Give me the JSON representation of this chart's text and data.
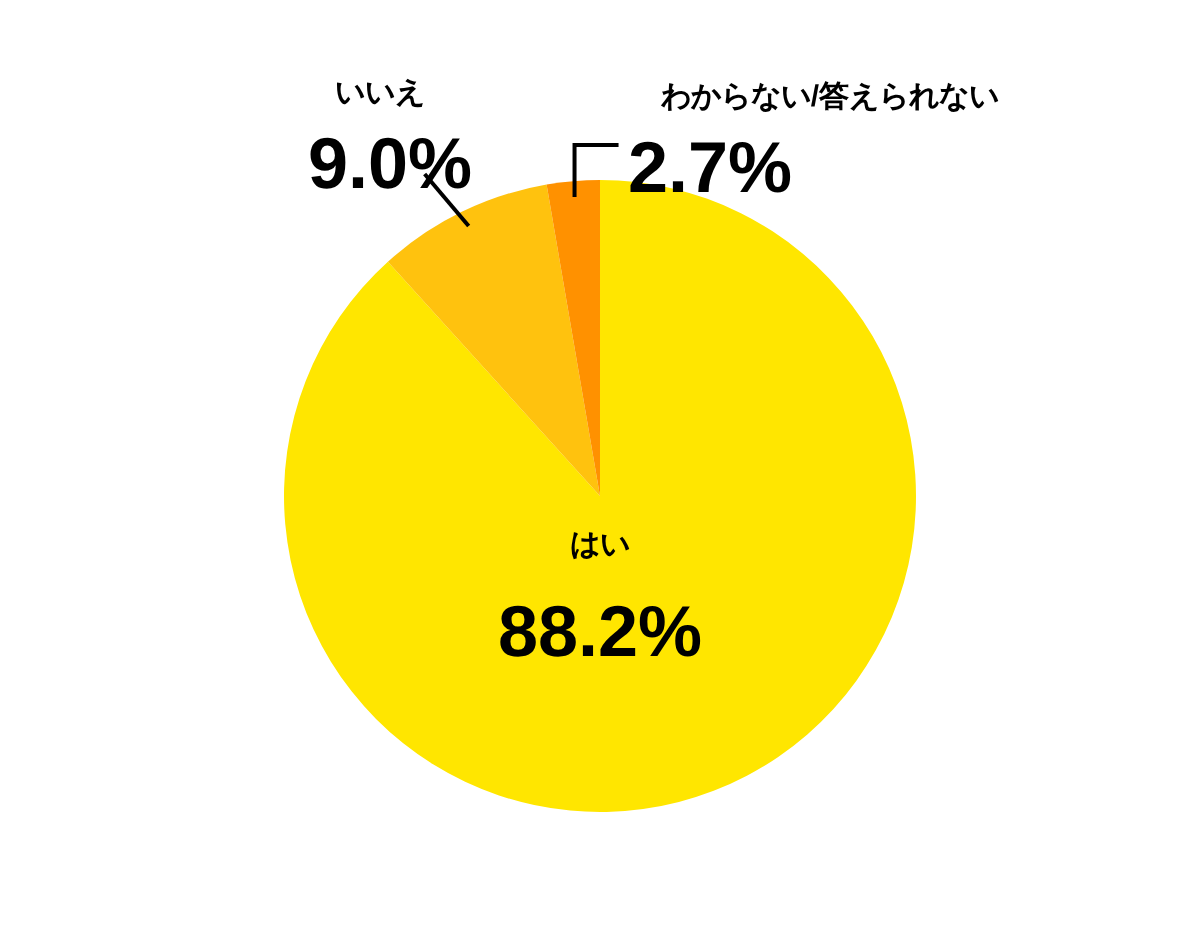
{
  "chart_data": {
    "type": "pie",
    "categories": [
      "はい",
      "いいえ",
      "わからない/答えられない"
    ],
    "values": [
      88.2,
      9.0,
      2.7
    ],
    "colors": [
      "#ffe600",
      "#ffc20e",
      "#ff9100"
    ],
    "value_labels": [
      "88.2%",
      "9.0%",
      "2.7%"
    ]
  }
}
